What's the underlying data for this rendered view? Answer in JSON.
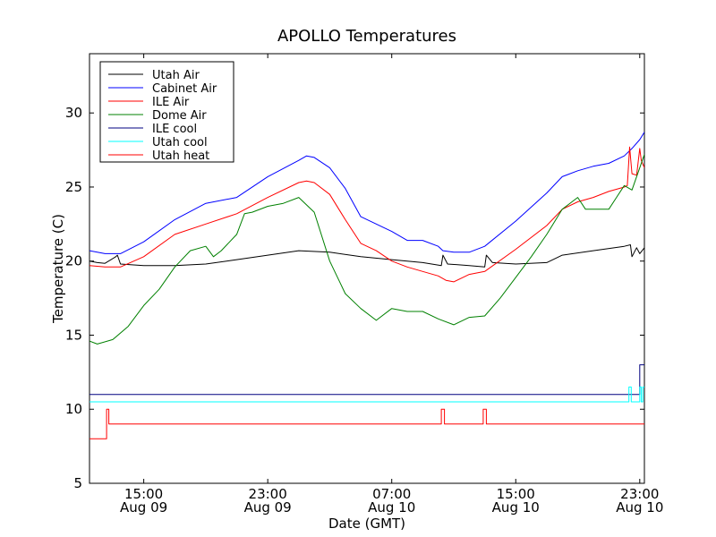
{
  "chart_data": {
    "type": "line",
    "title": "APOLLO Temperatures",
    "xlabel": "Date (GMT)",
    "ylabel": "Temperature (C)",
    "xlim": [
      11.5,
      47.3
    ],
    "ylim": [
      5,
      34
    ],
    "x_unit": "hours since Aug 09 00:00 GMT",
    "x_ticks": [
      {
        "x": 15,
        "line1": "15:00",
        "line2": "Aug 09"
      },
      {
        "x": 23,
        "line1": "23:00",
        "line2": "Aug 09"
      },
      {
        "x": 31,
        "line1": "07:00",
        "line2": "Aug 10"
      },
      {
        "x": 39,
        "line1": "15:00",
        "line2": "Aug 10"
      },
      {
        "x": 47,
        "line1": "23:00",
        "line2": "Aug 10"
      }
    ],
    "y_ticks": [
      5,
      10,
      15,
      20,
      25,
      30
    ],
    "legend_position": "top-left",
    "series": [
      {
        "name": "Utah Air",
        "color": "#000000",
        "points": [
          [
            11.5,
            20.0
          ],
          [
            12,
            19.9
          ],
          [
            12.5,
            19.85
          ],
          [
            13.2,
            20.3
          ],
          [
            13.3,
            20.4
          ],
          [
            13.5,
            19.8
          ],
          [
            15,
            19.7
          ],
          [
            17,
            19.7
          ],
          [
            19,
            19.8
          ],
          [
            21,
            20.1
          ],
          [
            23,
            20.4
          ],
          [
            25,
            20.7
          ],
          [
            27,
            20.6
          ],
          [
            29,
            20.3
          ],
          [
            31,
            20.1
          ],
          [
            33,
            19.9
          ],
          [
            34.2,
            19.7
          ],
          [
            34.3,
            20.4
          ],
          [
            34.6,
            19.8
          ],
          [
            36,
            19.7
          ],
          [
            37,
            19.6
          ],
          [
            37.1,
            20.4
          ],
          [
            37.5,
            19.9
          ],
          [
            39,
            19.8
          ],
          [
            41,
            19.9
          ],
          [
            42,
            20.4
          ],
          [
            44,
            20.7
          ],
          [
            46,
            21.0
          ],
          [
            46.4,
            21.1
          ],
          [
            46.5,
            20.3
          ],
          [
            46.8,
            20.9
          ],
          [
            47.0,
            20.5
          ],
          [
            47.3,
            20.9
          ]
        ]
      },
      {
        "name": "Cabinet Air",
        "color": "#0000ff",
        "points": [
          [
            11.5,
            20.7
          ],
          [
            12.5,
            20.5
          ],
          [
            13.5,
            20.5
          ],
          [
            15,
            21.3
          ],
          [
            17,
            22.8
          ],
          [
            19,
            23.9
          ],
          [
            21,
            24.3
          ],
          [
            23,
            25.7
          ],
          [
            25,
            26.8
          ],
          [
            25.5,
            27.1
          ],
          [
            26,
            27.0
          ],
          [
            27,
            26.3
          ],
          [
            28,
            24.9
          ],
          [
            29,
            23.0
          ],
          [
            30,
            22.5
          ],
          [
            31,
            22.0
          ],
          [
            32,
            21.4
          ],
          [
            33,
            21.4
          ],
          [
            34,
            21.0
          ],
          [
            34.3,
            20.7
          ],
          [
            35,
            20.6
          ],
          [
            36,
            20.6
          ],
          [
            37,
            21.0
          ],
          [
            39,
            22.7
          ],
          [
            41,
            24.6
          ],
          [
            42,
            25.7
          ],
          [
            43,
            26.1
          ],
          [
            44,
            26.4
          ],
          [
            45,
            26.6
          ],
          [
            46,
            27.1
          ],
          [
            46.5,
            27.6
          ],
          [
            47,
            28.2
          ],
          [
            47.3,
            28.7
          ]
        ]
      },
      {
        "name": "ILE Air",
        "color": "#ff0000",
        "points": [
          [
            11.5,
            19.7
          ],
          [
            12.5,
            19.6
          ],
          [
            13.5,
            19.6
          ],
          [
            15,
            20.3
          ],
          [
            17,
            21.8
          ],
          [
            19,
            22.5
          ],
          [
            21,
            23.2
          ],
          [
            23,
            24.3
          ],
          [
            25,
            25.3
          ],
          [
            25.5,
            25.4
          ],
          [
            26,
            25.3
          ],
          [
            27,
            24.5
          ],
          [
            28,
            22.8
          ],
          [
            29,
            21.2
          ],
          [
            30,
            20.7
          ],
          [
            31,
            20.0
          ],
          [
            32,
            19.6
          ],
          [
            33,
            19.3
          ],
          [
            34,
            19.0
          ],
          [
            34.5,
            18.7
          ],
          [
            35,
            18.6
          ],
          [
            36,
            19.1
          ],
          [
            37,
            19.3
          ],
          [
            39,
            20.8
          ],
          [
            41,
            22.4
          ],
          [
            42,
            23.5
          ],
          [
            43,
            24.0
          ],
          [
            44,
            24.3
          ],
          [
            45,
            24.7
          ],
          [
            46,
            25.0
          ],
          [
            46.2,
            25.1
          ],
          [
            46.35,
            27.7
          ],
          [
            46.5,
            25.9
          ],
          [
            46.8,
            25.8
          ],
          [
            47.0,
            27.6
          ],
          [
            47.1,
            26.8
          ],
          [
            47.3,
            26.3
          ]
        ]
      },
      {
        "name": "Dome Air",
        "color": "#008000",
        "points": [
          [
            11.5,
            14.6
          ],
          [
            12,
            14.4
          ],
          [
            13,
            14.7
          ],
          [
            14,
            15.6
          ],
          [
            15,
            17.0
          ],
          [
            16,
            18.1
          ],
          [
            17,
            19.6
          ],
          [
            18,
            20.7
          ],
          [
            19,
            21.0
          ],
          [
            19.5,
            20.3
          ],
          [
            20,
            20.7
          ],
          [
            21,
            21.8
          ],
          [
            21.5,
            23.2
          ],
          [
            22,
            23.3
          ],
          [
            23,
            23.7
          ],
          [
            24,
            23.9
          ],
          [
            25,
            24.3
          ],
          [
            26,
            23.3
          ],
          [
            27,
            20.0
          ],
          [
            28,
            17.8
          ],
          [
            29,
            16.8
          ],
          [
            30,
            16.0
          ],
          [
            31,
            16.8
          ],
          [
            32,
            16.6
          ],
          [
            33,
            16.6
          ],
          [
            34,
            16.1
          ],
          [
            35,
            15.7
          ],
          [
            36,
            16.2
          ],
          [
            37,
            16.3
          ],
          [
            38,
            17.5
          ],
          [
            39,
            18.9
          ],
          [
            40,
            20.3
          ],
          [
            41,
            21.8
          ],
          [
            42,
            23.5
          ],
          [
            43,
            24.3
          ],
          [
            43.5,
            23.5
          ],
          [
            44,
            23.5
          ],
          [
            45,
            23.5
          ],
          [
            45.5,
            24.3
          ],
          [
            46,
            25.1
          ],
          [
            46.5,
            24.8
          ],
          [
            47,
            26.3
          ],
          [
            47.3,
            27.2
          ]
        ]
      },
      {
        "name": "ILE cool",
        "color": "#000080",
        "points": [
          [
            11.5,
            11.0
          ],
          [
            47.0,
            11.0
          ],
          [
            47.0,
            13.0
          ],
          [
            47.3,
            13.0
          ]
        ]
      },
      {
        "name": "Utah cool",
        "color": "#00ffff",
        "points": [
          [
            11.5,
            10.5
          ],
          [
            46.3,
            10.5
          ],
          [
            46.3,
            11.5
          ],
          [
            46.45,
            11.5
          ],
          [
            46.45,
            10.5
          ],
          [
            47.0,
            10.5
          ],
          [
            47.0,
            11.5
          ],
          [
            47.1,
            11.5
          ],
          [
            47.1,
            10.5
          ],
          [
            47.2,
            10.5
          ],
          [
            47.2,
            11.5
          ],
          [
            47.3,
            11.5
          ]
        ]
      },
      {
        "name": "Utah heat",
        "color": "#ff0000",
        "points": [
          [
            11.5,
            8.0
          ],
          [
            12.6,
            8.0
          ],
          [
            12.6,
            10.0
          ],
          [
            12.75,
            10.0
          ],
          [
            12.75,
            9.0
          ],
          [
            34.2,
            9.0
          ],
          [
            34.2,
            10.0
          ],
          [
            34.4,
            10.0
          ],
          [
            34.4,
            9.0
          ],
          [
            36.9,
            9.0
          ],
          [
            36.9,
            10.0
          ],
          [
            37.1,
            10.0
          ],
          [
            37.1,
            9.0
          ],
          [
            47.3,
            9.0
          ]
        ]
      }
    ]
  }
}
